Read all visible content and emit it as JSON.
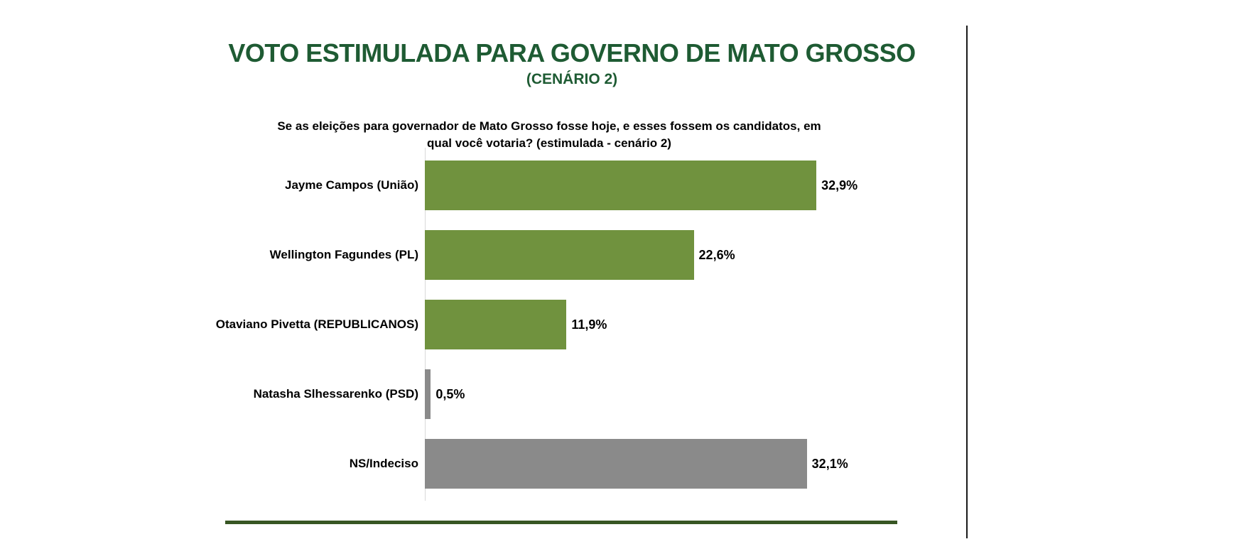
{
  "header": {
    "title": "VOTO ESTIMULADA PARA GOVERNO DE MATO GROSSO",
    "subtitle": "(CENÁRIO 2)",
    "title_color": "#1e5b33"
  },
  "question": {
    "line1": "Se as eleições para governador de Mato Grosso fosse hoje, e esses fossem os candidatos, em",
    "line2": "qual você votaria? (estimulada - cenário 2)"
  },
  "chart_data": {
    "type": "bar",
    "orientation": "horizontal",
    "title": "VOTO ESTIMULADA PARA GOVERNO DE MATO GROSSO (CENÁRIO 2)",
    "categories": [
      "Jayme Campos (União)",
      "Wellington Fagundes (PL)",
      "Otaviano Pivetta (REPUBLICANOS)",
      "Natasha Slhessarenko (PSD)",
      "NS/Indeciso"
    ],
    "values": [
      32.9,
      22.6,
      11.9,
      0.5,
      32.1
    ],
    "value_labels": [
      "32,9%",
      "22,6%",
      "11,9%",
      "0,5%",
      "32,1%"
    ],
    "bar_colors": [
      "#70923e",
      "#70923e",
      "#70923e",
      "#8a8a8a",
      "#8a8a8a"
    ],
    "xlabel": "",
    "ylabel": "",
    "xlim": [
      0,
      35
    ],
    "grid": false,
    "legend": false,
    "data_labels": "outside-end"
  },
  "decorations": {
    "bottom_rule_color": "#375623",
    "divider_color": "#1a1a1a",
    "axis_line_color": "#d9d9d9"
  }
}
